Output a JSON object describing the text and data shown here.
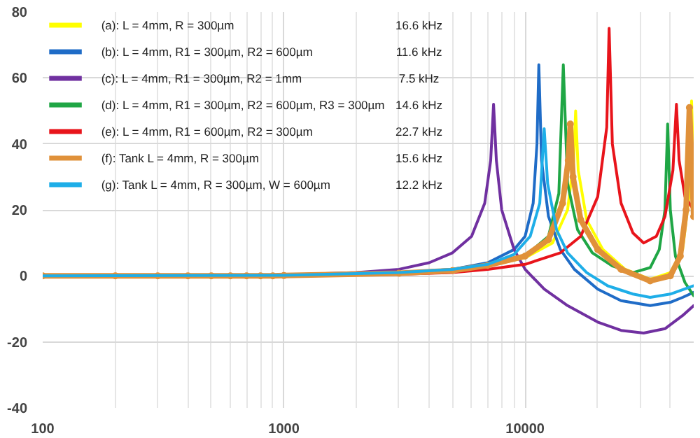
{
  "chart_data": {
    "type": "line",
    "xlim": [
      100,
      50000
    ],
    "ylim": [
      -40,
      80
    ],
    "xticks": [
      100,
      1000,
      10000
    ],
    "yticks": [
      -40,
      -20,
      0,
      20,
      40,
      60,
      80
    ],
    "log": "x",
    "grid": true,
    "legend": "top left",
    "marker": "none",
    "annotations": [
      "16.6 kHz",
      "11.6 kHz",
      "7.5 kHz",
      "14.6 kHz",
      "22.7 kHz",
      "15.6 kHz",
      "12.2 kHz"
    ],
    "series": [
      {
        "name": "(a):  L = 4mm, R = 300µm",
        "color": "#ffff00",
        "x": [
          7000,
          10000,
          13000,
          15000,
          15900,
          16200,
          16600,
          18000,
          21000,
          26000,
          33000,
          40000,
          45000,
          48000,
          49000,
          50000
        ],
        "values": [
          3,
          5.5,
          10,
          20,
          35,
          50,
          32,
          17,
          8,
          2,
          -1,
          1,
          8,
          25,
          53,
          30
        ]
      },
      {
        "name": "(b):  L = 4mm, R1 = 300µm, R2 = 600µm",
        "color": "#1f6cc7",
        "x": [
          100,
          1000,
          3000,
          5000,
          7000,
          9000,
          10000,
          10800,
          11200,
          11400,
          11700,
          12500,
          14000,
          16000,
          20000,
          25000,
          33000,
          40000,
          45000,
          50000
        ],
        "values": [
          0,
          0.2,
          1,
          2,
          4,
          8,
          12,
          22,
          40,
          64,
          35,
          18,
          8,
          2,
          -4,
          -7.5,
          -9,
          -8,
          -6.5,
          -5
        ]
      },
      {
        "name": "(c):  L = 4mm, R1 = 300µm, R2 = 1mm",
        "color": "#7030a0",
        "x": [
          100,
          1000,
          2000,
          3000,
          4000,
          5000,
          6000,
          6800,
          7200,
          7400,
          7600,
          8000,
          9000,
          10000,
          12000,
          15000,
          20000,
          25000,
          31000,
          38000,
          45000,
          50000
        ],
        "values": [
          0,
          0.3,
          1,
          2,
          4,
          7,
          12,
          22,
          35,
          52,
          35,
          20,
          8,
          2,
          -4,
          -9,
          -14,
          -16.5,
          -17.3,
          -16,
          -12,
          -9
        ]
      },
      {
        "name": "(d):  L = 4mm, R1 = 300µm, R2 = 600µm, R3 = 300µm",
        "color": "#1fa645",
        "x": [
          7000,
          10000,
          12500,
          13800,
          14400,
          15000,
          16500,
          19000,
          23000,
          28000,
          33000,
          36000,
          38000,
          39000,
          40000,
          42000,
          46000,
          50000
        ],
        "values": [
          3,
          6,
          12,
          25,
          64,
          28,
          14,
          7,
          3,
          1,
          2.5,
          8,
          20,
          46,
          20,
          6,
          -2,
          -6
        ]
      },
      {
        "name": "(e):  L = 4mm, R1 = 600µm, R2 = 300µm",
        "color": "#e8141b",
        "x": [
          100,
          1000,
          3000,
          5000,
          7000,
          10000,
          14000,
          17000,
          20000,
          21800,
          22300,
          23000,
          25000,
          28000,
          31000,
          35000,
          38000,
          41000,
          42400,
          43500,
          46000,
          50000
        ],
        "values": [
          0,
          0,
          0.5,
          1,
          2,
          3.5,
          7,
          12,
          24,
          45,
          75,
          40,
          22,
          13,
          10,
          12,
          18,
          32,
          52,
          35,
          24,
          20
        ]
      },
      {
        "name": "(f):  Tank L = 4mm, R = 300µm",
        "color": "#e0913a",
        "marker": "circle",
        "x": [
          100,
          200,
          300,
          400,
          500,
          600,
          700,
          800,
          900,
          1000,
          3000,
          5000,
          7000,
          10000,
          12500,
          14300,
          15100,
          15400,
          15800,
          17000,
          20000,
          25000,
          33000,
          40000,
          44000,
          46500,
          48000,
          49000,
          50000
        ],
        "values": [
          0,
          0,
          0,
          0,
          0,
          0,
          0,
          0,
          0,
          0.1,
          0.8,
          1.6,
          3.2,
          6,
          11,
          22,
          35,
          46,
          30,
          17,
          8,
          2,
          -1.5,
          0,
          6,
          20,
          51,
          35,
          18
        ]
      },
      {
        "name": "(g):  Tank L = 4mm, R = 300µm, W = 600µm",
        "color": "#1eaee8",
        "x": [
          100,
          1000,
          3000,
          5000,
          7000,
          9000,
          10500,
          11500,
          12000,
          12400,
          13500,
          15000,
          18000,
          22000,
          28000,
          33000,
          40000,
          50000
        ],
        "values": [
          0,
          0.2,
          1,
          2,
          3.5,
          6.5,
          12,
          22,
          44.6,
          28,
          14,
          7,
          1,
          -3,
          -5.5,
          -6.5,
          -5.5,
          -3
        ]
      }
    ]
  }
}
